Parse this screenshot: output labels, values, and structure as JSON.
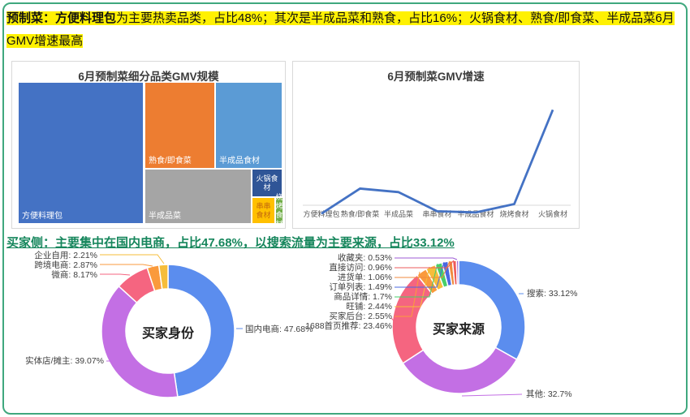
{
  "page": {
    "border_color": "#3FA87E",
    "highlight_color": "#FFF102",
    "headline2_color": "#16865C"
  },
  "headline1": {
    "bold": "预制菜：方便料理包",
    "rest": "为主要热卖品类，占比48%；其次是半成品菜和熟食，占比16%；火锅食材、熟食/即食菜、半成品菜6月GMV增速最高"
  },
  "headline2": {
    "text": "买家侧：主要集中在国内电商，占比47.68%，以搜索流量为主要来源，占比33.12%"
  },
  "chart_data": [
    {
      "id": "category-gmv-treemap",
      "type": "treemap",
      "title": "6月预制菜细分品类GMV规模",
      "items": [
        {
          "name": "方便料理包",
          "share_pct_est": 48,
          "color": "#4472C4"
        },
        {
          "name": "熟食/即食菜",
          "share_pct_est": 16,
          "color": "#ED7D31"
        },
        {
          "name": "半成品食材",
          "share_pct_est": 15,
          "color": "#5B9BD5"
        },
        {
          "name": "半成品菜",
          "share_pct_est": 15.5,
          "color": "#A5A5A5"
        },
        {
          "name": "火锅食材",
          "share_pct_est": 2.2,
          "color": "#2F5597"
        },
        {
          "name": "串串食材",
          "share_pct_est": 1.5,
          "color": "#FFC000"
        },
        {
          "name": "烧烤食材",
          "share_pct_est": 0.5,
          "color": "#70AD47"
        }
      ]
    },
    {
      "id": "gmv-growth-line",
      "type": "line",
      "title": "6月预制菜GMV增速",
      "categories": [
        "方便料理包",
        "熟食/即食菜",
        "半成品菜",
        "串串食材",
        "半成品食材",
        "烧烤食材",
        "火锅食材"
      ],
      "values_pct_est": [
        -7,
        14,
        11,
        -5,
        -6,
        1,
        80
      ],
      "baseline": 0,
      "line_color": "#4472C4",
      "axis_color": "#D9D9D9",
      "grid": false
    },
    {
      "id": "buyer-identity-donut",
      "type": "pie",
      "title": "买家身份",
      "legend_position": "callout-labels",
      "items": [
        {
          "label": "国内电商",
          "pct": "47.68%",
          "value": 47.68,
          "color": "#5B8DEE"
        },
        {
          "label": "实体店/摊主",
          "pct": "39.07%",
          "value": 39.07,
          "color": "#C36FE4"
        },
        {
          "label": "微商",
          "pct": "8.17%",
          "value": 8.17,
          "color": "#F56580"
        },
        {
          "label": "跨境电商",
          "pct": "2.87%",
          "value": 2.87,
          "color": "#FA9A3C"
        },
        {
          "label": "企业自用",
          "pct": "2.21%",
          "value": 2.21,
          "color": "#F6BD3A"
        }
      ]
    },
    {
      "id": "buyer-source-donut",
      "type": "pie",
      "title": "买家来源",
      "legend_position": "callout-labels",
      "items": [
        {
          "label": "搜索",
          "pct": "33.12%",
          "value": 33.12,
          "color": "#5B8DEE"
        },
        {
          "label": "其他",
          "pct": "32.7%",
          "value": 32.7,
          "color": "#C36FE4"
        },
        {
          "label": "1688首页推荐",
          "pct": "23.46%",
          "value": 23.46,
          "color": "#F56580"
        },
        {
          "label": "买家后台",
          "pct": "2.55%",
          "value": 2.55,
          "color": "#FA9A3C"
        },
        {
          "label": "旺铺",
          "pct": "2.44%",
          "value": 2.44,
          "color": "#F6BD3A"
        },
        {
          "label": "商品详情",
          "pct": "1.7%",
          "value": 1.7,
          "color": "#47CE69"
        },
        {
          "label": "订单列表",
          "pct": "1.49%",
          "value": 1.49,
          "color": "#4968E2"
        },
        {
          "label": "进货单",
          "pct": "1.06%",
          "value": 1.06,
          "color": "#F08A3C"
        },
        {
          "label": "直接访问",
          "pct": "0.96%",
          "value": 0.96,
          "color": "#EE5B5B"
        },
        {
          "label": "收藏夹",
          "pct": "0.53%",
          "value": 0.53,
          "color": "#9D5BD6"
        }
      ]
    }
  ]
}
